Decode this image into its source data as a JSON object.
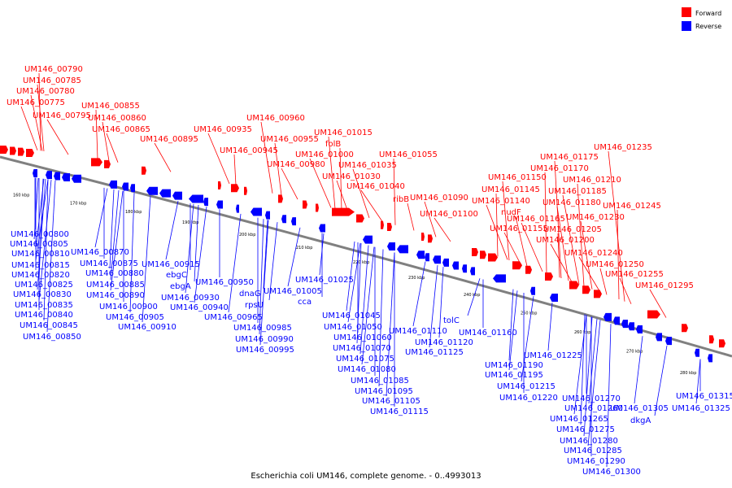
{
  "caption": "Escherichia coli UM146, complete genome. - 0..4993013",
  "legend": [
    {
      "label": "Forward",
      "color": "#ff0000"
    },
    {
      "label": "Reverse",
      "color": "#0000ff"
    }
  ],
  "axis_ticks": [
    "160 kbp",
    "170 kbp",
    "180 kbp",
    "190 kbp",
    "200 kbp",
    "210 kbp",
    "220 kbp",
    "230 kbp",
    "240 kbp",
    "250 kbp",
    "260 kbp",
    "270 kbp",
    "280 kbp"
  ],
  "forward_labels": [
    "UM146_00790",
    "UM146_00785",
    "UM146_00780",
    "UM146_00775",
    "UM146_00795",
    "UM146_00855",
    "UM146_00860",
    "UM146_00865",
    "UM146_00895",
    "UM146_00935",
    "UM146_00945",
    "UM146_00955",
    "UM146_00960",
    "UM146_00980",
    "UM146_01000",
    "folB",
    "UM146_01015",
    "UM146_01030",
    "UM146_01035",
    "UM146_01040",
    "UM146_01055",
    "ribB",
    "UM146_01090",
    "UM146_01100",
    "UM146_01140",
    "UM146_01145",
    "UM146_01150",
    "nudF",
    "UM146_01155",
    "UM146_01165",
    "UM146_01170",
    "UM146_01175",
    "UM146_01180",
    "UM146_01185",
    "UM146_01200",
    "UM146_01205",
    "UM146_01210",
    "UM146_01230",
    "UM146_01235",
    "UM146_01240",
    "UM146_01245",
    "UM146_01250",
    "UM146_01255",
    "UM146_01295"
  ],
  "reverse_labels": [
    "UM146_00800",
    "UM146_00805",
    "UM146_00810",
    "UM146_00815",
    "UM146_00820",
    "UM146_00825",
    "UM146_00830",
    "UM146_00835",
    "UM146_00840",
    "UM146_00845",
    "UM146_00850",
    "UM146_00870",
    "UM146_00875",
    "UM146_00880",
    "UM146_00885",
    "UM146_00890",
    "UM146_00900",
    "UM146_00905",
    "UM146_00910",
    "UM146_00915",
    "ebgC",
    "ebgA",
    "UM146_00930",
    "UM146_00940",
    "UM146_00950",
    "dnaG",
    "rpsU",
    "UM146_00965",
    "UM146_00985",
    "UM146_00990",
    "UM146_00995",
    "UM146_01005",
    "cca",
    "UM146_01025",
    "UM146_01045",
    "UM146_01050",
    "UM146_01060",
    "UM146_01070",
    "UM146_01075",
    "UM146_01080",
    "UM146_01085",
    "UM146_01095",
    "UM146_01105",
    "UM146_01110",
    "UM146_01115",
    "UM146_01120",
    "UM146_01125",
    "tolC",
    "UM146_01160",
    "UM146_01190",
    "UM146_01195",
    "UM146_01215",
    "UM146_01220",
    "UM146_01225",
    "UM146_01260",
    "UM146_01265",
    "UM146_01270",
    "UM146_01275",
    "UM146_01280",
    "UM146_01285",
    "UM146_01290",
    "UM146_01300",
    "UM146_01305",
    "dkgA",
    "UM146_01315",
    "UM146_01325"
  ]
}
